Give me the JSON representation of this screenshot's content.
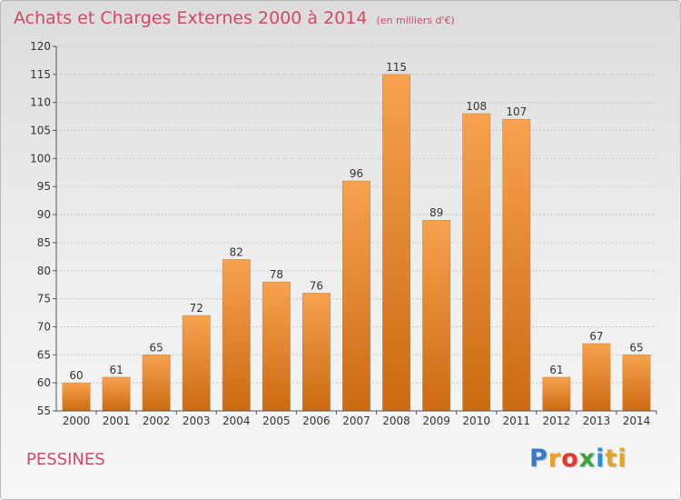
{
  "title": "Achats et Charges Externes 2000 à 2014",
  "unit": "(en milliers d'€)",
  "commune": "PESSINES",
  "logo": {
    "text": "Proxiti",
    "letters": [
      "P",
      "r",
      "o",
      "x",
      "i",
      "ti"
    ]
  },
  "colors": {
    "title": "#d04a66",
    "bar_light": "#f7a24e",
    "bar_dark": "#cc6a12",
    "grid": "#c8c8c8"
  },
  "chart_data": {
    "type": "bar",
    "title": "Achats et Charges Externes 2000 à 2014",
    "subtitle": "(en milliers d'€)",
    "categories": [
      "2000",
      "2001",
      "2002",
      "2003",
      "2004",
      "2005",
      "2006",
      "2007",
      "2008",
      "2009",
      "2010",
      "2011",
      "2012",
      "2013",
      "2014"
    ],
    "values": [
      60,
      61,
      65,
      72,
      82,
      78,
      76,
      96,
      115,
      89,
      108,
      107,
      61,
      67,
      65
    ],
    "ylim": [
      55,
      120
    ],
    "yticks": [
      55,
      60,
      65,
      70,
      75,
      80,
      85,
      90,
      95,
      100,
      105,
      110,
      115,
      120
    ],
    "grid": true,
    "xlabel": "",
    "ylabel": ""
  }
}
